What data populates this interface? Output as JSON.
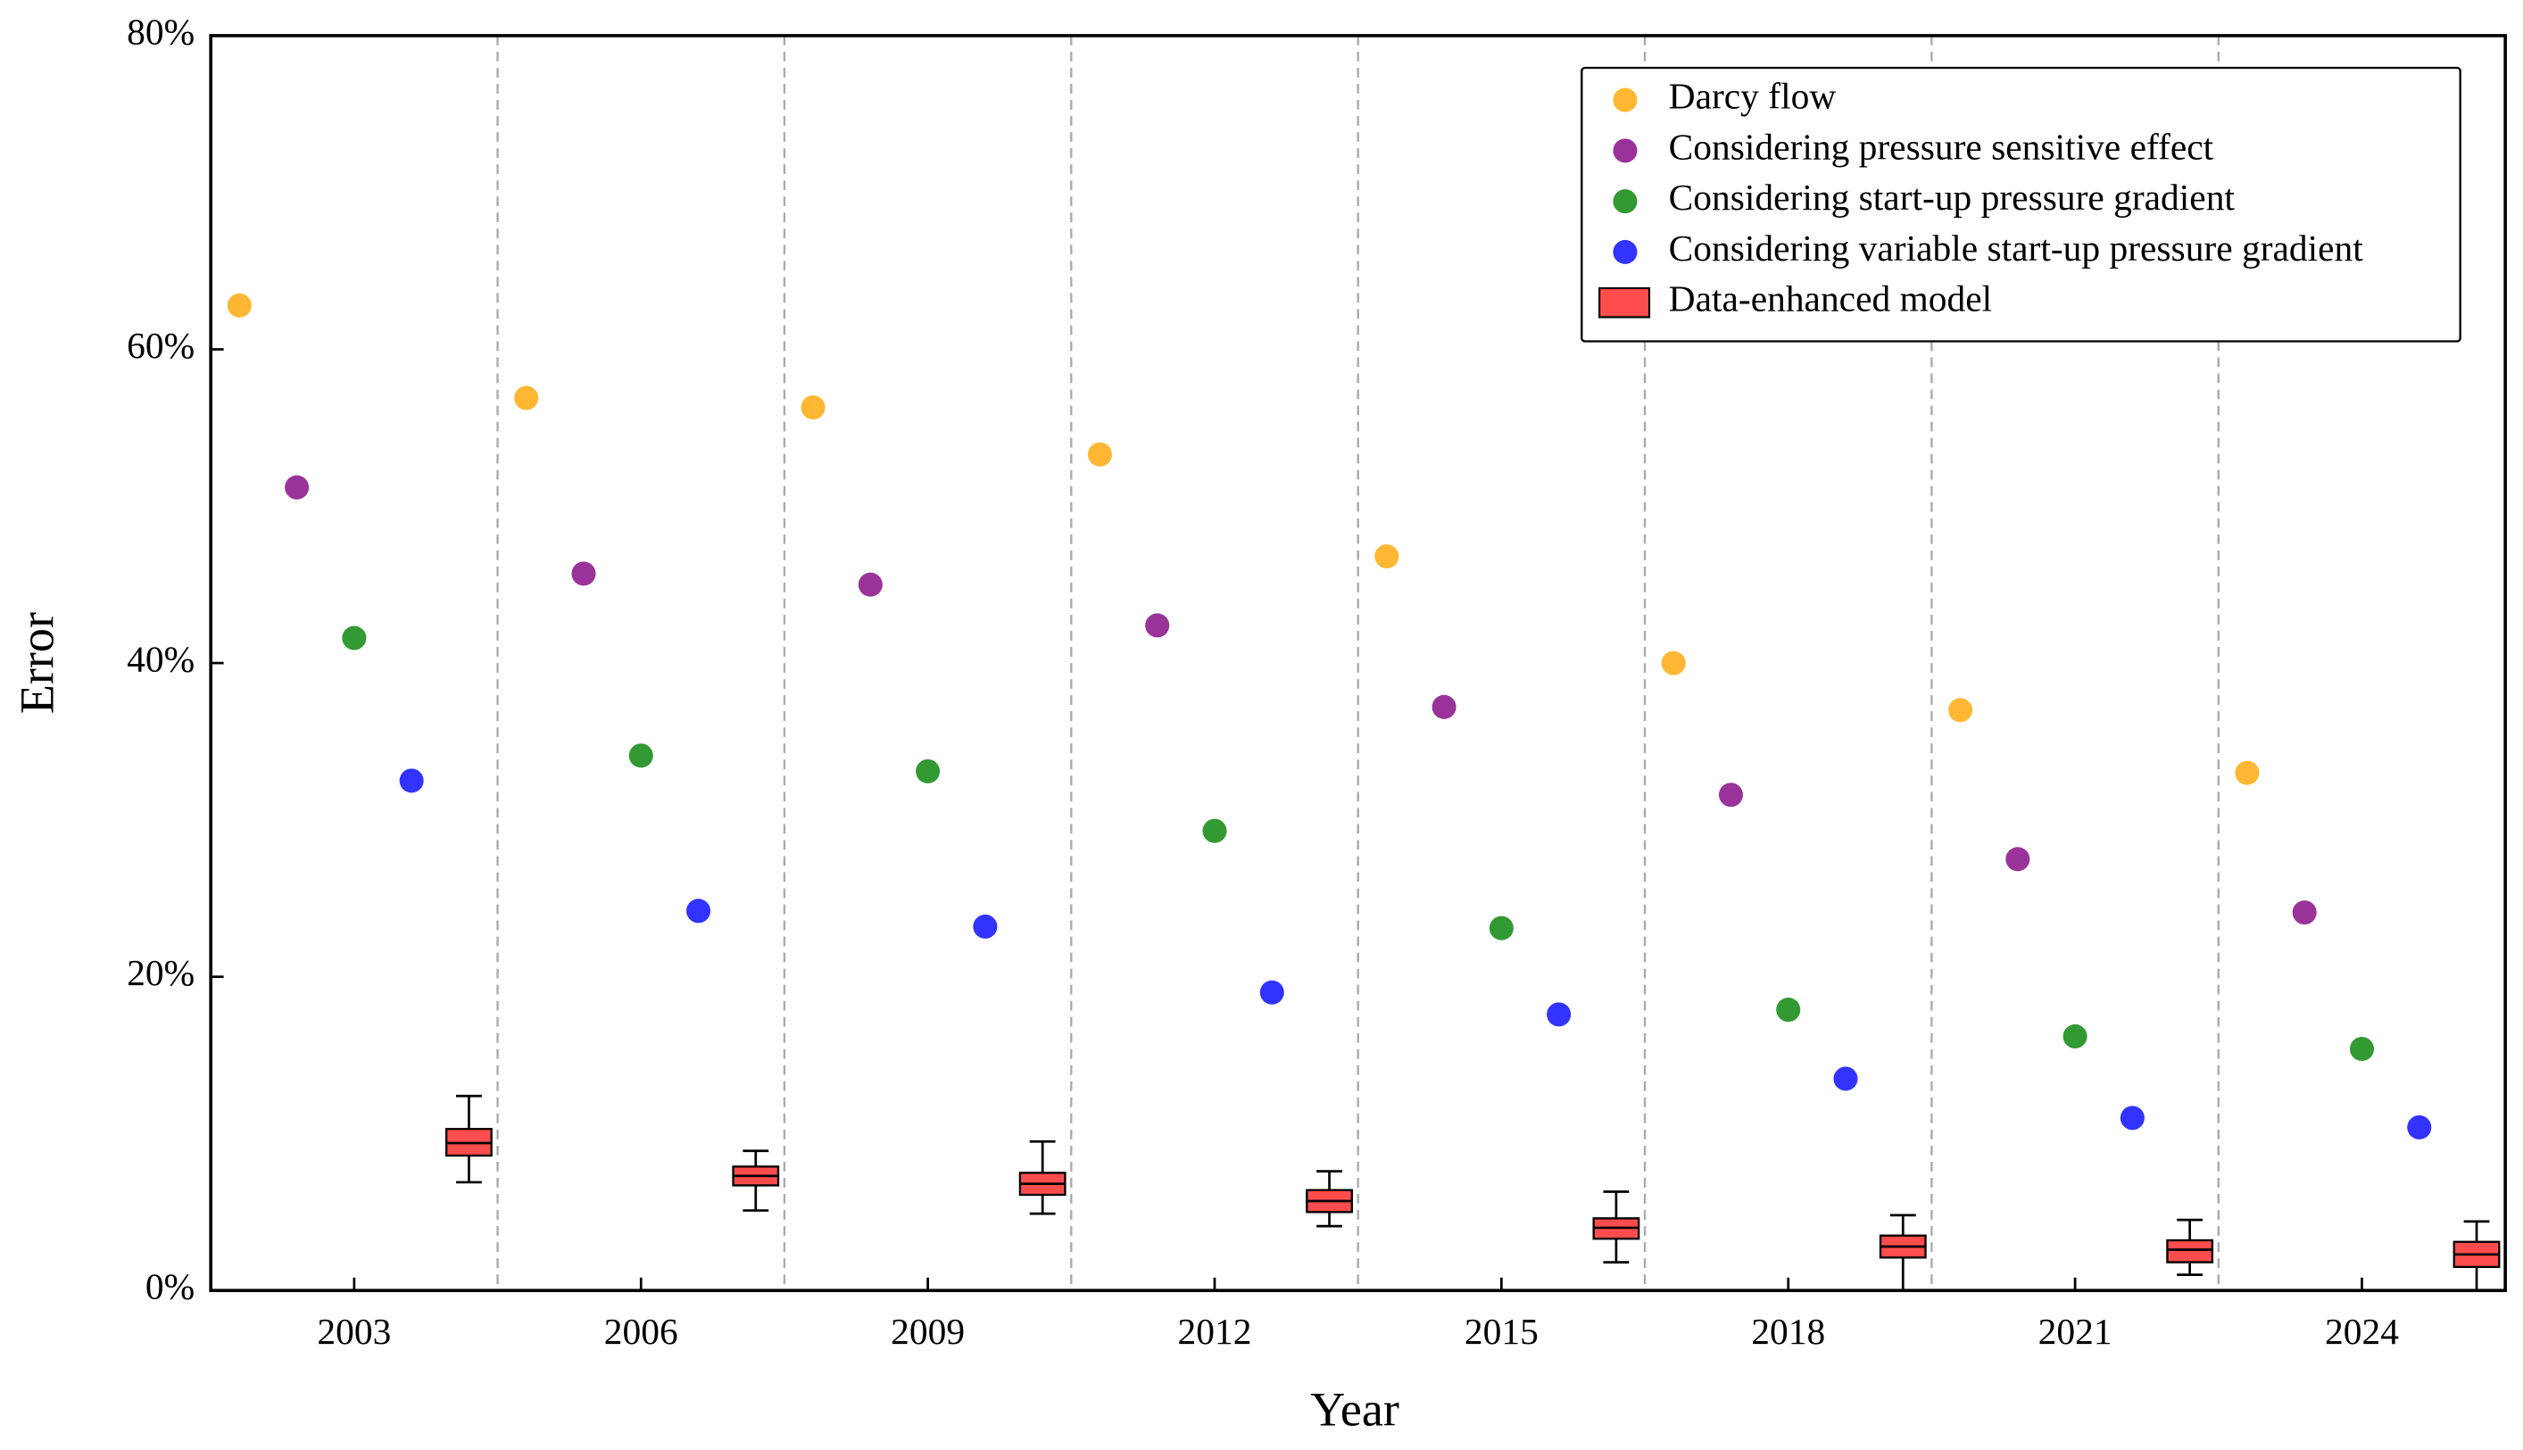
{
  "chart_data": {
    "type": "scatter-box",
    "x_label": "Year",
    "y_label": "Error",
    "xlim": [
      2001.5,
      2025.5
    ],
    "xticks": [
      2003,
      2006,
      2009,
      2012,
      2015,
      2018,
      2021,
      2024
    ],
    "ylim": [
      0,
      80
    ],
    "yticks": [
      {
        "value": 0,
        "label": "0%"
      },
      {
        "value": 20,
        "label": "20%"
      },
      {
        "value": 40,
        "label": "40%"
      },
      {
        "value": 60,
        "label": "60%"
      },
      {
        "value": 80,
        "label": "80%"
      }
    ],
    "separators": [
      2004.5,
      2007.5,
      2010.5,
      2013.5,
      2016.5,
      2019.5,
      2022.5
    ],
    "legend": "upper right",
    "series": [
      {
        "name": "Darcy flow",
        "color": "#ffa500",
        "x": [
          2001.8,
          2004.8,
          2007.8,
          2010.8,
          2013.8,
          2016.8,
          2019.8,
          2022.8
        ],
        "values": [
          62.8,
          56.9,
          56.3,
          53.3,
          46.8,
          40.0,
          37.0,
          33.0
        ]
      },
      {
        "name": "Considering pressure sensitive effect",
        "color": "#800080",
        "x": [
          2002.4,
          2005.4,
          2008.4,
          2011.4,
          2014.4,
          2017.4,
          2020.4,
          2023.4
        ],
        "values": [
          51.2,
          45.7,
          45.0,
          42.4,
          37.2,
          31.6,
          27.5,
          24.1
        ]
      },
      {
        "name": "Considering start-up pressure gradient",
        "color": "#008000",
        "x": [
          2003.0,
          2006.0,
          2009.0,
          2012.0,
          2015.0,
          2018.0,
          2021.0,
          2024.0
        ],
        "values": [
          41.6,
          34.1,
          33.1,
          29.3,
          23.1,
          17.9,
          16.2,
          15.4
        ]
      },
      {
        "name": "Considering variable start-up pressure gradient",
        "color": "#0000ff",
        "x": [
          2003.6,
          2006.6,
          2009.6,
          2012.6,
          2015.6,
          2018.6,
          2021.6,
          2024.6
        ],
        "values": [
          32.5,
          24.2,
          23.2,
          19.0,
          17.6,
          13.5,
          11.0,
          10.4
        ]
      }
    ],
    "box": {
      "name": "Data-enhanced model",
      "color": "#ff4d4d",
      "x": [
        2004.2,
        2007.2,
        2010.2,
        2013.2,
        2016.2,
        2019.2,
        2022.2,
        2025.2
      ],
      "min": [
        6.9,
        5.1,
        4.9,
        4.1,
        1.8,
        0,
        1.0,
        0
      ],
      "q1": [
        8.6,
        6.7,
        6.1,
        5.0,
        3.3,
        2.1,
        1.8,
        1.5
      ],
      "median": [
        9.4,
        7.3,
        6.8,
        5.7,
        4.0,
        2.8,
        2.6,
        2.3
      ],
      "q3": [
        10.3,
        7.9,
        7.5,
        6.4,
        4.6,
        3.5,
        3.2,
        3.1
      ],
      "max": [
        12.4,
        8.9,
        9.5,
        7.6,
        6.3,
        4.8,
        4.5,
        4.4
      ]
    }
  }
}
